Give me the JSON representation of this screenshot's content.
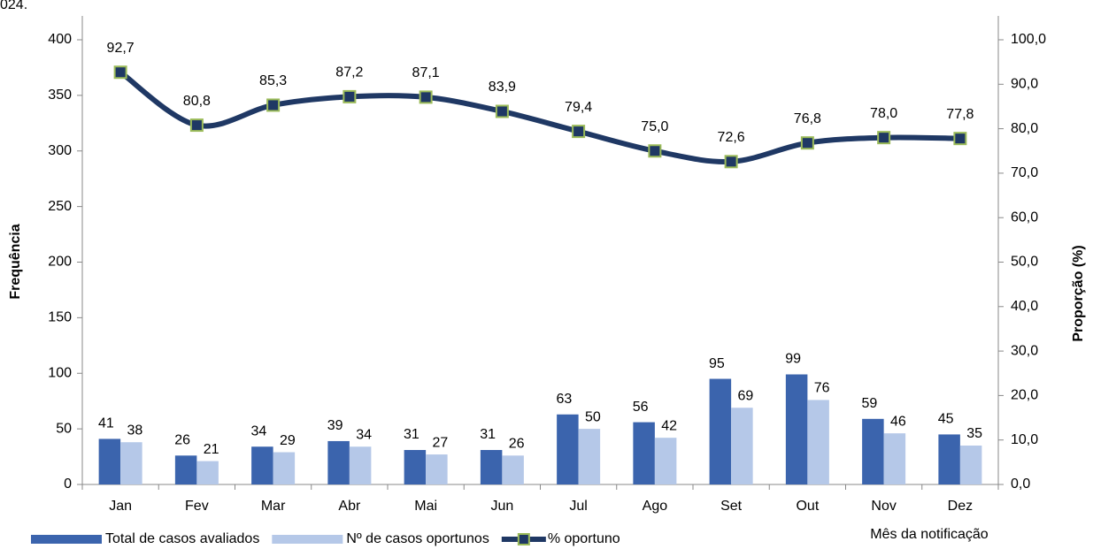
{
  "chart_data": {
    "type": "bar",
    "title": "024.",
    "categories": [
      "Jan",
      "Fev",
      "Mar",
      "Abr",
      "Mai",
      "Jun",
      "Jul",
      "Ago",
      "Set",
      "Out",
      "Nov",
      "Dez"
    ],
    "series": [
      {
        "name": "Total de casos avaliados",
        "type": "bar",
        "color": "#3b64ad",
        "values": [
          41,
          26,
          34,
          39,
          31,
          31,
          63,
          56,
          95,
          99,
          59,
          45
        ]
      },
      {
        "name": "Nº de casos oportunos",
        "type": "bar",
        "color": "#b5c8e8",
        "values": [
          38,
          21,
          29,
          34,
          27,
          26,
          50,
          42,
          69,
          76,
          46,
          35
        ]
      },
      {
        "name": "% oportuno",
        "type": "line",
        "axis": "y2",
        "color": "#1f3864",
        "marker_edge_color": "#9bbb59",
        "values": [
          92.7,
          80.8,
          85.3,
          87.2,
          87.1,
          83.9,
          79.4,
          75.0,
          72.6,
          76.8,
          78.0,
          77.8
        ],
        "value_labels": [
          "92,7",
          "80,8",
          "85,3",
          "87,2",
          "87,1",
          "83,9",
          "79,4",
          "75,0",
          "72,6",
          "76,8",
          "78,0",
          "77,8"
        ]
      }
    ],
    "ylabel": "Frequência",
    "y2label": "Proporção (%)",
    "xlabel": "Mês da notificação",
    "ylim": [
      0,
      400
    ],
    "yticks": [
      0,
      50,
      100,
      150,
      200,
      250,
      300,
      350,
      400
    ],
    "y2lim": [
      0,
      100
    ],
    "y2ticks": [
      {
        "value": 0,
        "label": "0,0"
      },
      {
        "value": 10,
        "label": "10,0"
      },
      {
        "value": 20,
        "label": "20,0"
      },
      {
        "value": 30,
        "label": "30,0"
      },
      {
        "value": 40,
        "label": "40,0"
      },
      {
        "value": 50,
        "label": "50,0"
      },
      {
        "value": 60,
        "label": "60,0"
      },
      {
        "value": 70,
        "label": "70,0"
      },
      {
        "value": 80,
        "label": "80,0"
      },
      {
        "value": 90,
        "label": "90,0"
      },
      {
        "value": 100,
        "label": "100,0"
      }
    ],
    "grid": false,
    "legend": "bottom-left"
  }
}
